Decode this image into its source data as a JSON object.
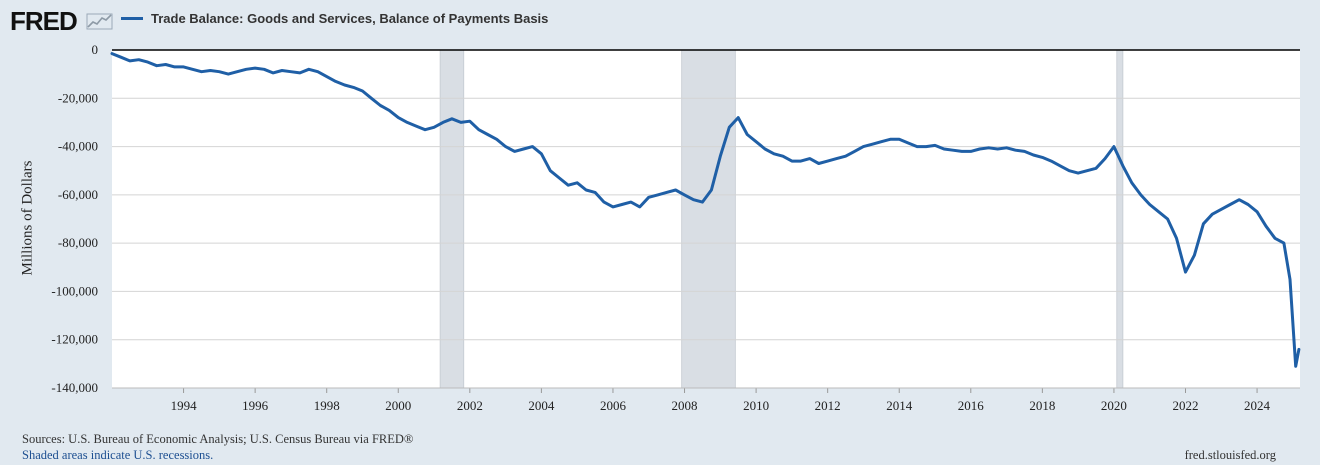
{
  "header": {
    "logo_text": "FRED",
    "legend_label": "Trade Balance: Goods and Services, Balance of Payments Basis",
    "series_color": "#1f5fa6"
  },
  "footer": {
    "sources": "Sources: U.S. Bureau of Economic Analysis; U.S. Census Bureau via FRED®",
    "recessions_note": "Shaded areas indicate U.S. recessions.",
    "url": "fred.stlouisfed.org"
  },
  "chart_data": {
    "type": "line",
    "title": "",
    "xlabel": "",
    "ylabel": "Millions of Dollars",
    "xlim": [
      1992.0,
      2025.2
    ],
    "ylim": [
      -140000,
      0
    ],
    "yticks": [
      0,
      -20000,
      -40000,
      -60000,
      -80000,
      -100000,
      -120000,
      -140000
    ],
    "ytick_labels": [
      "0",
      "-20,000",
      "-40,000",
      "-60,000",
      "-80,000",
      "-100,000",
      "-120,000",
      "-140,000"
    ],
    "xticks": [
      1994,
      1996,
      1998,
      2000,
      2002,
      2004,
      2006,
      2008,
      2010,
      2012,
      2014,
      2016,
      2018,
      2020,
      2022,
      2024
    ],
    "xtick_labels": [
      "1994",
      "1996",
      "1998",
      "2000",
      "2002",
      "2004",
      "2006",
      "2008",
      "2010",
      "2012",
      "2014",
      "2016",
      "2018",
      "2020",
      "2022",
      "2024"
    ],
    "grid": true,
    "legend_position": "top-left",
    "recessions": [
      [
        2001.17,
        2001.83
      ],
      [
        2007.92,
        2009.42
      ],
      [
        2020.08,
        2020.25
      ]
    ],
    "series": [
      {
        "name": "Trade Balance: Goods and Services, Balance of Payments Basis",
        "color": "#1f5fa6",
        "points": [
          [
            1992.0,
            -1500
          ],
          [
            1992.25,
            -3000
          ],
          [
            1992.5,
            -4500
          ],
          [
            1992.75,
            -4000
          ],
          [
            1993.0,
            -5000
          ],
          [
            1993.25,
            -6500
          ],
          [
            1993.5,
            -6000
          ],
          [
            1993.75,
            -7000
          ],
          [
            1994.0,
            -7000
          ],
          [
            1994.25,
            -8000
          ],
          [
            1994.5,
            -9000
          ],
          [
            1994.75,
            -8500
          ],
          [
            1995.0,
            -9000
          ],
          [
            1995.25,
            -10000
          ],
          [
            1995.5,
            -9000
          ],
          [
            1995.75,
            -8000
          ],
          [
            1996.0,
            -7500
          ],
          [
            1996.25,
            -8000
          ],
          [
            1996.5,
            -9500
          ],
          [
            1996.75,
            -8500
          ],
          [
            1997.0,
            -9000
          ],
          [
            1997.25,
            -9500
          ],
          [
            1997.5,
            -8000
          ],
          [
            1997.75,
            -9000
          ],
          [
            1998.0,
            -11000
          ],
          [
            1998.25,
            -13000
          ],
          [
            1998.5,
            -14500
          ],
          [
            1998.75,
            -15500
          ],
          [
            1999.0,
            -17000
          ],
          [
            1999.25,
            -20000
          ],
          [
            1999.5,
            -23000
          ],
          [
            1999.75,
            -25000
          ],
          [
            2000.0,
            -28000
          ],
          [
            2000.25,
            -30000
          ],
          [
            2000.5,
            -31500
          ],
          [
            2000.75,
            -33000
          ],
          [
            2001.0,
            -32000
          ],
          [
            2001.25,
            -30000
          ],
          [
            2001.5,
            -28500
          ],
          [
            2001.75,
            -30000
          ],
          [
            2002.0,
            -29500
          ],
          [
            2002.25,
            -33000
          ],
          [
            2002.5,
            -35000
          ],
          [
            2002.75,
            -37000
          ],
          [
            2003.0,
            -40000
          ],
          [
            2003.25,
            -42000
          ],
          [
            2003.5,
            -41000
          ],
          [
            2003.75,
            -40000
          ],
          [
            2004.0,
            -43000
          ],
          [
            2004.25,
            -50000
          ],
          [
            2004.5,
            -53000
          ],
          [
            2004.75,
            -56000
          ],
          [
            2005.0,
            -55000
          ],
          [
            2005.25,
            -58000
          ],
          [
            2005.5,
            -59000
          ],
          [
            2005.75,
            -63000
          ],
          [
            2006.0,
            -65000
          ],
          [
            2006.25,
            -64000
          ],
          [
            2006.5,
            -63000
          ],
          [
            2006.75,
            -65000
          ],
          [
            2007.0,
            -61000
          ],
          [
            2007.25,
            -60000
          ],
          [
            2007.5,
            -59000
          ],
          [
            2007.75,
            -58000
          ],
          [
            2008.0,
            -60000
          ],
          [
            2008.25,
            -62000
          ],
          [
            2008.5,
            -63000
          ],
          [
            2008.75,
            -58000
          ],
          [
            2009.0,
            -44000
          ],
          [
            2009.25,
            -32000
          ],
          [
            2009.5,
            -28000
          ],
          [
            2009.75,
            -35000
          ],
          [
            2010.0,
            -38000
          ],
          [
            2010.25,
            -41000
          ],
          [
            2010.5,
            -43000
          ],
          [
            2010.75,
            -44000
          ],
          [
            2011.0,
            -46000
          ],
          [
            2011.25,
            -46000
          ],
          [
            2011.5,
            -45000
          ],
          [
            2011.75,
            -47000
          ],
          [
            2012.0,
            -46000
          ],
          [
            2012.25,
            -45000
          ],
          [
            2012.5,
            -44000
          ],
          [
            2012.75,
            -42000
          ],
          [
            2013.0,
            -40000
          ],
          [
            2013.25,
            -39000
          ],
          [
            2013.5,
            -38000
          ],
          [
            2013.75,
            -37000
          ],
          [
            2014.0,
            -37000
          ],
          [
            2014.25,
            -38500
          ],
          [
            2014.5,
            -40000
          ],
          [
            2014.75,
            -40000
          ],
          [
            2015.0,
            -39500
          ],
          [
            2015.25,
            -41000
          ],
          [
            2015.5,
            -41500
          ],
          [
            2015.75,
            -42000
          ],
          [
            2016.0,
            -42000
          ],
          [
            2016.25,
            -41000
          ],
          [
            2016.5,
            -40500
          ],
          [
            2016.75,
            -41000
          ],
          [
            2017.0,
            -40500
          ],
          [
            2017.25,
            -41500
          ],
          [
            2017.5,
            -42000
          ],
          [
            2017.75,
            -43500
          ],
          [
            2018.0,
            -44500
          ],
          [
            2018.25,
            -46000
          ],
          [
            2018.5,
            -48000
          ],
          [
            2018.75,
            -50000
          ],
          [
            2019.0,
            -51000
          ],
          [
            2019.25,
            -50000
          ],
          [
            2019.5,
            -49000
          ],
          [
            2019.75,
            -45000
          ],
          [
            2020.0,
            -40000
          ],
          [
            2020.25,
            -48000
          ],
          [
            2020.5,
            -55000
          ],
          [
            2020.75,
            -60000
          ],
          [
            2021.0,
            -64000
          ],
          [
            2021.25,
            -67000
          ],
          [
            2021.5,
            -70000
          ],
          [
            2021.75,
            -78000
          ],
          [
            2022.0,
            -92000
          ],
          [
            2022.25,
            -85000
          ],
          [
            2022.5,
            -72000
          ],
          [
            2022.75,
            -68000
          ],
          [
            2023.0,
            -66000
          ],
          [
            2023.25,
            -64000
          ],
          [
            2023.5,
            -62000
          ],
          [
            2023.75,
            -64000
          ],
          [
            2024.0,
            -67000
          ],
          [
            2024.25,
            -73000
          ],
          [
            2024.5,
            -78000
          ],
          [
            2024.75,
            -80000
          ],
          [
            2024.92,
            -95000
          ],
          [
            2025.08,
            -131000
          ],
          [
            2025.17,
            -124000
          ]
        ]
      }
    ]
  }
}
